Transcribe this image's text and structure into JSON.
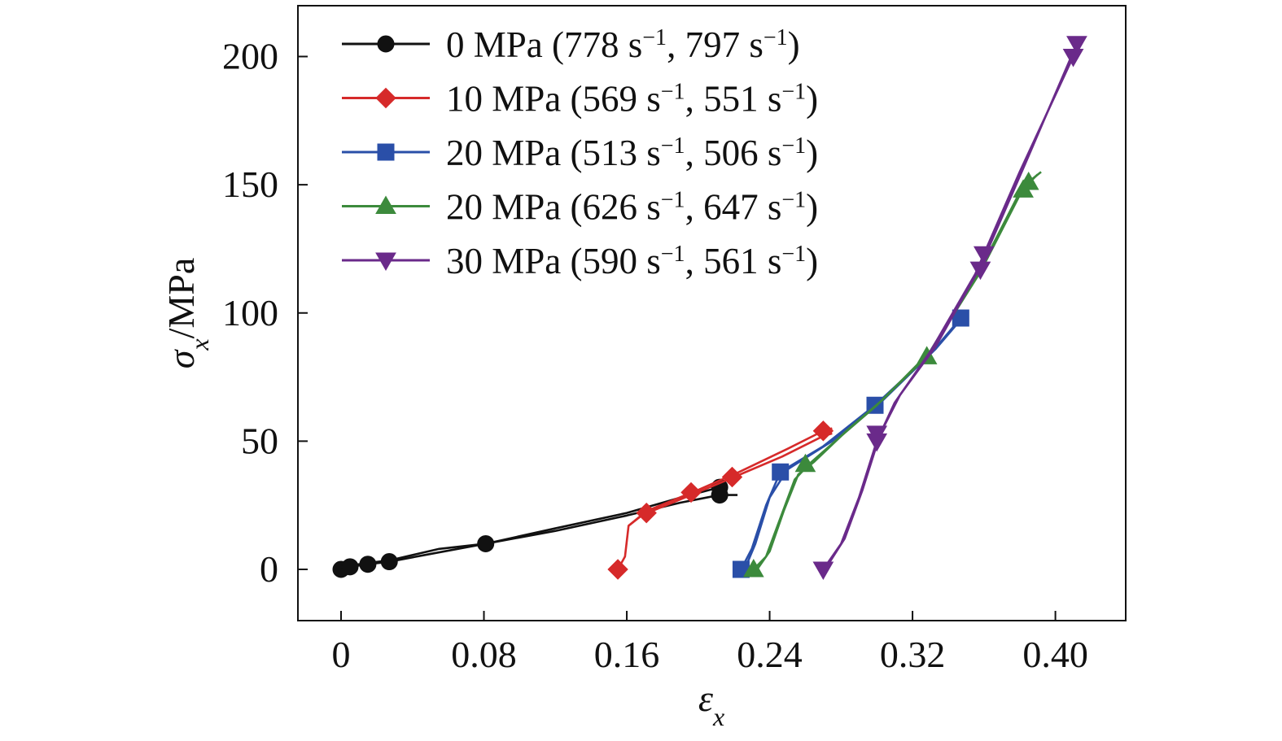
{
  "chart_data": {
    "type": "line",
    "xlabel": {
      "main": "ε",
      "sub": "x"
    },
    "ylabel": {
      "main": "σ",
      "sub": "x",
      "rest": "/MPa"
    },
    "xlim": [
      -0.025,
      0.44
    ],
    "ylim": [
      -20,
      220
    ],
    "xticks": [
      {
        "value": 0,
        "label": "0"
      },
      {
        "value": 0.08,
        "label": "0.08"
      },
      {
        "value": 0.16,
        "label": "0.16"
      },
      {
        "value": 0.24,
        "label": "0.24"
      },
      {
        "value": 0.32,
        "label": "0.32"
      },
      {
        "value": 0.4,
        "label": "0.40"
      }
    ],
    "yticks": [
      {
        "value": 0,
        "label": "0"
      },
      {
        "value": 50,
        "label": "50"
      },
      {
        "value": 100,
        "label": "100"
      },
      {
        "value": 150,
        "label": "150"
      },
      {
        "value": 200,
        "label": "200"
      }
    ],
    "grid": false,
    "legend_position": "top-left",
    "series": [
      {
        "name": "0 MPa (778 s⁻¹, 797 s⁻¹)",
        "legend": {
          "prefix": "0 MPa (778 s",
          "r1": "797 s"
        },
        "color": "#111111",
        "marker": "circle",
        "curves": [
          [
            [
              0,
              0
            ],
            [
              0.005,
              1
            ],
            [
              0.015,
              2
            ],
            [
              0.027,
              3
            ],
            [
              0.05,
              6
            ],
            [
              0.081,
              10
            ],
            [
              0.12,
              15
            ],
            [
              0.16,
              21
            ],
            [
              0.19,
              26
            ],
            [
              0.212,
              29
            ],
            [
              0.222,
              29
            ]
          ],
          [
            [
              0,
              0
            ],
            [
              0.005,
              1.5
            ],
            [
              0.015,
              2.5
            ],
            [
              0.027,
              3.5
            ],
            [
              0.055,
              8
            ],
            [
              0.081,
              10
            ],
            [
              0.12,
              16
            ],
            [
              0.16,
              22
            ],
            [
              0.19,
              28
            ],
            [
              0.212,
              32
            ]
          ]
        ],
        "markers": [
          [
            0,
            0
          ],
          [
            0.005,
            1
          ],
          [
            0.015,
            2
          ],
          [
            0.027,
            3
          ],
          [
            0.081,
            10
          ],
          [
            0.212,
            32
          ],
          [
            0.212,
            29
          ]
        ]
      },
      {
        "name": "10 MPa (569 s⁻¹, 551 s⁻¹)",
        "legend": {
          "prefix": "10 MPa (569 s",
          "r1": "551 s"
        },
        "color": "#d62a2a",
        "marker": "diamond",
        "curves": [
          [
            [
              0.155,
              0
            ],
            [
              0.159,
              5
            ],
            [
              0.161,
              17
            ],
            [
              0.168,
              21
            ],
            [
              0.196,
              29
            ],
            [
              0.22,
              36
            ],
            [
              0.247,
              44
            ],
            [
              0.27,
              52
            ],
            [
              0.275,
              53
            ]
          ],
          [
            [
              0.161,
              17
            ],
            [
              0.172,
              23
            ],
            [
              0.2,
              31
            ],
            [
              0.223,
              38
            ],
            [
              0.25,
              47
            ],
            [
              0.27,
              54
            ],
            [
              0.275,
              55
            ]
          ]
        ],
        "markers": [
          [
            0.155,
            0
          ],
          [
            0.171,
            22
          ],
          [
            0.196,
            30
          ],
          [
            0.219,
            36
          ],
          [
            0.27,
            54
          ]
        ]
      },
      {
        "name": "20 MPa (513 s⁻¹, 506 s⁻¹)",
        "legend": {
          "prefix": "20 MPa (513 s",
          "r1": "506 s"
        },
        "color": "#2a4fa8",
        "marker": "square",
        "curves": [
          [
            [
              0.224,
              0
            ],
            [
              0.23,
              8
            ],
            [
              0.238,
              25
            ],
            [
              0.246,
              38
            ],
            [
              0.27,
              48
            ],
            [
              0.299,
              64
            ],
            [
              0.33,
              84
            ],
            [
              0.347,
              98
            ]
          ],
          [
            [
              0.226,
              0
            ],
            [
              0.232,
              10
            ],
            [
              0.24,
              28
            ],
            [
              0.25,
              39
            ],
            [
              0.275,
              50
            ],
            [
              0.302,
              65
            ],
            [
              0.333,
              86
            ],
            [
              0.349,
              99
            ]
          ]
        ],
        "markers": [
          [
            0.224,
            0
          ],
          [
            0.246,
            38
          ],
          [
            0.299,
            64
          ],
          [
            0.347,
            98
          ]
        ]
      },
      {
        "name": "20 MPa (626 s⁻¹, 647 s⁻¹)",
        "legend": {
          "prefix": "20 MPa (626 s",
          "r1": "647 s"
        },
        "color": "#3c8a3c",
        "marker": "triangle-up",
        "curves": [
          [
            [
              0.231,
              0
            ],
            [
              0.238,
              5
            ],
            [
              0.246,
              20
            ],
            [
              0.254,
              35
            ],
            [
              0.262,
              41
            ],
            [
              0.28,
              52
            ],
            [
              0.3,
              64
            ],
            [
              0.328,
              83
            ],
            [
              0.355,
              113
            ],
            [
              0.38,
              147
            ],
            [
              0.39,
              154
            ]
          ],
          [
            [
              0.233,
              0
            ],
            [
              0.24,
              7
            ],
            [
              0.248,
              23
            ],
            [
              0.256,
              37
            ],
            [
              0.265,
              42
            ],
            [
              0.283,
              54
            ],
            [
              0.303,
              66
            ],
            [
              0.33,
              85
            ],
            [
              0.358,
              116
            ],
            [
              0.383,
              150
            ],
            [
              0.392,
              155
            ]
          ]
        ],
        "markers": [
          [
            0.231,
            0
          ],
          [
            0.26,
            41
          ],
          [
            0.328,
            83
          ],
          [
            0.382,
            148
          ],
          [
            0.385,
            151
          ]
        ]
      },
      {
        "name": "30 MPa (590 s⁻¹, 561 s⁻¹)",
        "legend": {
          "prefix": "30 MPa (590 s",
          "r1": "561 s"
        },
        "color": "#6a2a8a",
        "marker": "triangle-down",
        "curves": [
          [
            [
              0.27,
              0
            ],
            [
              0.28,
              10
            ],
            [
              0.29,
              28
            ],
            [
              0.3,
              50
            ],
            [
              0.31,
              65
            ],
            [
              0.33,
              85
            ],
            [
              0.355,
              115
            ],
            [
              0.38,
              155
            ],
            [
              0.41,
              200
            ]
          ],
          [
            [
              0.271,
              0
            ],
            [
              0.282,
              12
            ],
            [
              0.292,
              31
            ],
            [
              0.302,
              53
            ],
            [
              0.313,
              68
            ],
            [
              0.333,
              87
            ],
            [
              0.358,
              118
            ],
            [
              0.383,
              158
            ],
            [
              0.412,
              205
            ]
          ]
        ],
        "markers": [
          [
            0.27,
            0
          ],
          [
            0.3,
            50
          ],
          [
            0.3,
            53
          ],
          [
            0.358,
            117
          ],
          [
            0.36,
            123
          ],
          [
            0.41,
            200
          ],
          [
            0.412,
            205
          ]
        ]
      }
    ]
  }
}
